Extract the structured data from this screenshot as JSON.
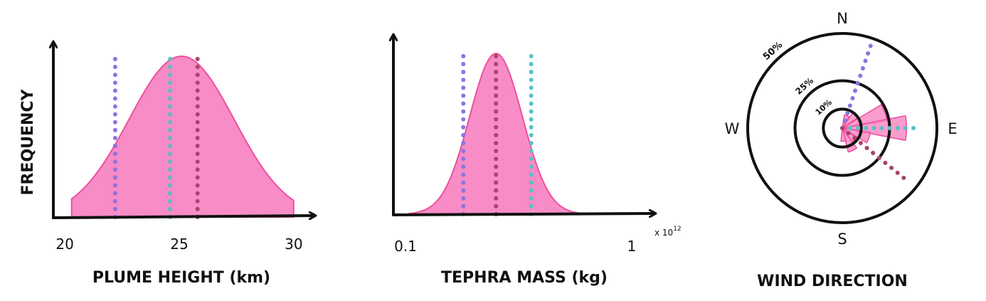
{
  "chart_data": [
    {
      "type": "area",
      "xlabel": "PLUME HEIGHT (km)",
      "ylabel": "FREQUENCY",
      "xticks": [
        "20",
        "25",
        "30"
      ],
      "xlim": [
        19.5,
        31
      ],
      "distribution": {
        "mean": 25.1,
        "sd": 2.3,
        "x_range": [
          20.3,
          30
        ]
      },
      "markers": [
        {
          "x": 22.2,
          "color": "#8b74e0"
        },
        {
          "x": 24.6,
          "color": "#56c2c2"
        },
        {
          "x": 25.8,
          "color": "#a8456a"
        }
      ]
    },
    {
      "type": "area",
      "xlabel": "TEPHRA MASS (kg)",
      "xticks": [
        "0.1",
        "1"
      ],
      "x_multiplier": "x 10^12",
      "x_multiplier_label": "x 10",
      "x_multiplier_exponent": "12",
      "xlim": [
        0.1,
        1
      ],
      "distribution": {
        "mean": 0.46,
        "sd": 0.105,
        "x_range": [
          0.115,
          0.93
        ]
      },
      "markers": [
        {
          "x": 0.33,
          "color": "#8b74e0"
        },
        {
          "x": 0.46,
          "color": "#a8456a"
        },
        {
          "x": 0.6,
          "color": "#56c2c2"
        }
      ]
    },
    {
      "type": "polar_bar",
      "title": "WIND DIRECTION",
      "compass": [
        "N",
        "E",
        "S",
        "W"
      ],
      "rings": [
        {
          "label": "10%",
          "value": 10
        },
        {
          "label": "25%",
          "value": 25
        },
        {
          "label": "50%",
          "value": 50
        }
      ],
      "sectors": [
        {
          "bearing": 20,
          "percent": 7
        },
        {
          "bearing": 45,
          "percent": 10
        },
        {
          "bearing": 70,
          "percent": 24
        },
        {
          "bearing": 90,
          "percent": 34
        },
        {
          "bearing": 110,
          "percent": 15
        },
        {
          "bearing": 135,
          "percent": 9
        },
        {
          "bearing": 155,
          "percent": 13
        },
        {
          "bearing": 175,
          "percent": 7
        }
      ],
      "markers": [
        {
          "bearing": 19,
          "percent": 50,
          "color": "#8b74e0"
        },
        {
          "bearing": 90,
          "percent": 38,
          "color": "#56c2c2"
        },
        {
          "bearing": 129,
          "percent": 45,
          "color": "#a8456a"
        }
      ]
    }
  ],
  "colors": {
    "fill": "#f78cc6",
    "stroke": "#ee4f9d",
    "axis": "#111111"
  }
}
